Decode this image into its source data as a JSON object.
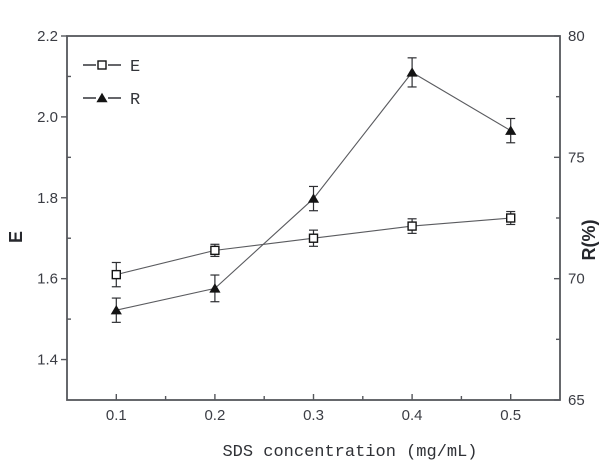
{
  "figure": {
    "background": "#ffffff",
    "frame_color": "#55575c",
    "line_color": "#5a5b5f",
    "marker_color": "#141414",
    "text_color": "#3b3d44"
  },
  "chart_data": {
    "type": "line",
    "title": "",
    "xlabel": "SDS concentration (mg/mL)",
    "x": [
      0.1,
      0.2,
      0.3,
      0.4,
      0.5
    ],
    "x_axis": {
      "min": 0.05,
      "max": 0.55,
      "major_ticks": [
        0.1,
        0.2,
        0.3,
        0.4,
        0.5
      ],
      "tick_labels": [
        "0.1",
        "0.2",
        "0.3",
        "0.4",
        "0.5"
      ],
      "minor_ticks": [
        0.15,
        0.25,
        0.35,
        0.45
      ]
    },
    "left_axis": {
      "label": "E",
      "min": 1.3,
      "max": 2.2,
      "major_ticks": [
        2.2,
        2.0,
        1.8,
        1.6,
        1.4
      ],
      "tick_labels": [
        "2.2",
        "2.0",
        "1.8",
        "1.6",
        "1.4"
      ],
      "minor_ticks": [
        2.1,
        1.9,
        1.7,
        1.5
      ]
    },
    "right_axis": {
      "label": "R(%)",
      "min": 65,
      "max": 80,
      "major_ticks": [
        80,
        75,
        70,
        65
      ],
      "tick_labels": [
        "80",
        "75",
        "70",
        "65"
      ],
      "minor_ticks": [
        77.5,
        72.5,
        67.5
      ]
    },
    "grid": false,
    "legend": {
      "position": "top-left",
      "entries": [
        "E",
        "R"
      ]
    },
    "series": [
      {
        "name": "E",
        "axis": "left",
        "marker": "open-square",
        "values": [
          1.61,
          1.67,
          1.7,
          1.73,
          1.75
        ],
        "errors": [
          0.03,
          0.015,
          0.02,
          0.018,
          0.016
        ]
      },
      {
        "name": "R",
        "axis": "right",
        "marker": "filled-triangle",
        "values": [
          68.7,
          69.6,
          73.3,
          78.5,
          76.1
        ],
        "errors": [
          0.5,
          0.55,
          0.5,
          0.6,
          0.5
        ]
      }
    ]
  }
}
